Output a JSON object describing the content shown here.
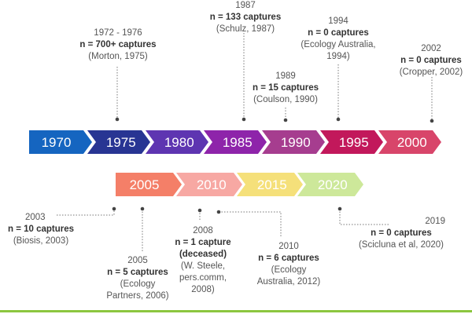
{
  "colors": {
    "connector": "#777777",
    "label_text": "#555555",
    "label_bold": "#333333",
    "arrow_text": "#ffffff",
    "bottom_rule": "#8cc63f"
  },
  "top_row": [
    {
      "label": "1970",
      "color": "#1565c0"
    },
    {
      "label": "1975",
      "color": "#283593"
    },
    {
      "label": "1980",
      "color": "#5e35b1"
    },
    {
      "label": "1985",
      "color": "#8e24aa"
    },
    {
      "label": "1990",
      "color": "#a63d8f"
    },
    {
      "label": "1995",
      "color": "#c2185b"
    },
    {
      "label": "2000",
      "color": "#d8456a"
    }
  ],
  "bottom_row": [
    {
      "label": "2005",
      "color": "#f47f68"
    },
    {
      "label": "2010",
      "color": "#f7a8a3"
    },
    {
      "label": "2015",
      "color": "#f5e07a"
    },
    {
      "label": "2020",
      "color": "#cde89a"
    }
  ],
  "notes": [
    {
      "year": "1972 - 1976",
      "count": "n = 700+ captures",
      "source": [
        "(Morton, 1975)"
      ]
    },
    {
      "year": "1987",
      "count": "n = 133 captures",
      "source": [
        "(Schulz, 1987)"
      ]
    },
    {
      "year": "1989",
      "count": "n = 15 captures",
      "source": [
        "(Coulson, 1990)"
      ]
    },
    {
      "year": "1994",
      "count": "n = 0 captures",
      "source": [
        "(Ecology Australia,",
        "1994)"
      ]
    },
    {
      "year": "2002",
      "count": "n = 0 captures",
      "source": [
        "(Cropper, 2002)"
      ]
    },
    {
      "year": "2003",
      "count": "n = 10 captures",
      "source": [
        "(Biosis, 2003)"
      ]
    },
    {
      "year": "2005",
      "count": "n = 5 captures",
      "source": [
        "(Ecology",
        "Partners, 2006)"
      ]
    },
    {
      "year": "2008",
      "count": "n = 1 capture",
      "extra": "(deceased)",
      "source": [
        "(W. Steele,",
        "pers.comm,",
        "2008)"
      ]
    },
    {
      "year": "2010",
      "count": "n = 6 captures",
      "source": [
        "(Ecology",
        "Australia, 2012)"
      ]
    },
    {
      "year": "2019",
      "count": "n = 0 captures",
      "source": [
        "(Scicluna et al, 2020)"
      ]
    }
  ]
}
